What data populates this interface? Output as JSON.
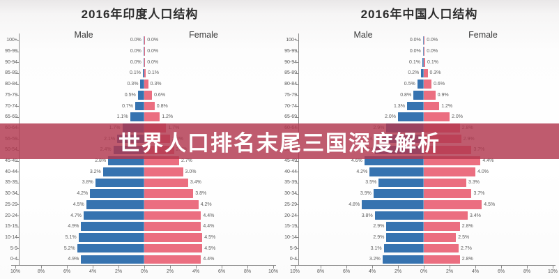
{
  "banner": {
    "text": "世界人口排名末尾三国深度解析",
    "bg_color": "rgba(177,55,78,0.82)",
    "text_color": "#ffffff"
  },
  "colors": {
    "male_bar": "#3673b0",
    "female_bar": "#eb6e80",
    "axis": "#8a8a8a",
    "label_text": "#5c5c5c",
    "title_text": "#2d2d2d"
  },
  "chart_data": [
    {
      "type": "bar",
      "subtype": "population-pyramid",
      "title": "2016年印度人口结构",
      "xlabel": "",
      "ylabel": "",
      "x_axis_unit": "%",
      "xlim": [
        -10,
        10
      ],
      "grid": false,
      "legend_position": "top",
      "x_tick_labels": [
        "10%",
        "8%",
        "6%",
        "4%",
        "2%",
        "0%",
        "2%",
        "4%",
        "6%",
        "8%",
        "10%"
      ],
      "categories": [
        "100+",
        "95-99",
        "90-94",
        "85-89",
        "80-84",
        "75-79",
        "70-74",
        "65-69",
        "60-64",
        "55-59",
        "50-54",
        "45-49",
        "40-44",
        "35-39",
        "30-34",
        "25-29",
        "20-24",
        "15-19",
        "10-14",
        "5-9",
        "0-4"
      ],
      "series": [
        {
          "name": "Male",
          "values": [
            0.0,
            0.0,
            0.0,
            0.1,
            0.3,
            0.5,
            0.7,
            1.1,
            1.7,
            2.1,
            2.4,
            2.8,
            3.2,
            3.8,
            4.2,
            4.5,
            4.7,
            4.9,
            5.1,
            5.2,
            4.9
          ]
        },
        {
          "name": "Female",
          "values": [
            0.0,
            0.0,
            0.0,
            0.1,
            0.3,
            0.6,
            0.8,
            1.2,
            1.7,
            2.0,
            2.3,
            2.7,
            3.0,
            3.4,
            3.8,
            4.2,
            4.4,
            4.4,
            4.5,
            4.5,
            4.4
          ]
        }
      ]
    },
    {
      "type": "bar",
      "subtype": "population-pyramid",
      "title": "2016年中国人口结构",
      "xlabel": "",
      "ylabel": "",
      "x_axis_unit": "%",
      "xlim": [
        -10,
        10
      ],
      "grid": false,
      "legend_position": "top",
      "x_tick_labels": [
        "10%",
        "8%",
        "6%",
        "4%",
        "2%",
        "0%",
        "2%",
        "4%",
        "6%",
        "8%",
        "10%"
      ],
      "categories": [
        "100+",
        "95-99",
        "90-94",
        "85-89",
        "80-84",
        "75-79",
        "70-74",
        "65-69",
        "60-64",
        "55-59",
        "50-54",
        "45-49",
        "40-44",
        "35-39",
        "30-34",
        "25-29",
        "20-24",
        "15-19",
        "10-14",
        "5-9",
        "0-4"
      ],
      "series": [
        {
          "name": "Male",
          "values": [
            0.0,
            0.0,
            0.1,
            0.2,
            0.5,
            0.8,
            1.3,
            2.0,
            2.9,
            3.2,
            3.8,
            4.6,
            4.2,
            3.5,
            3.9,
            4.8,
            3.8,
            2.9,
            2.9,
            3.1,
            3.2
          ]
        },
        {
          "name": "Female",
          "values": [
            0.0,
            0.0,
            0.1,
            0.3,
            0.6,
            0.9,
            1.2,
            2.0,
            2.8,
            2.9,
            3.7,
            4.4,
            4.0,
            3.3,
            3.7,
            4.5,
            3.4,
            2.8,
            2.5,
            2.7,
            2.8
          ]
        }
      ]
    }
  ]
}
